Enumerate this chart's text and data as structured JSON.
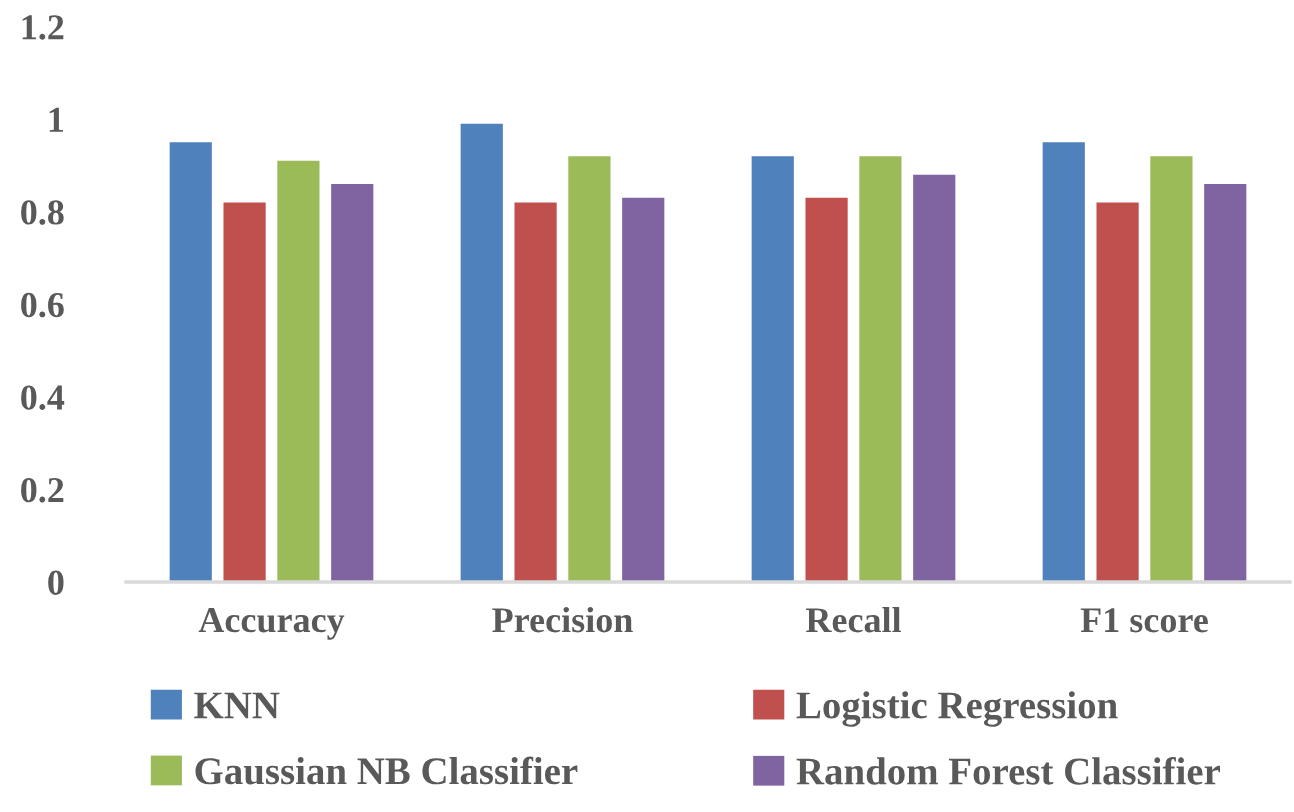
{
  "chart_data": {
    "type": "bar",
    "categories": [
      "Accuracy",
      "Precision",
      "Recall",
      "F1 score"
    ],
    "series": [
      {
        "name": "KNN",
        "color": "#4f81bd",
        "values": [
          0.95,
          0.99,
          0.92,
          0.95
        ]
      },
      {
        "name": "Logistic Regression",
        "color": "#c0504d",
        "values": [
          0.82,
          0.82,
          0.83,
          0.82
        ]
      },
      {
        "name": "Gaussian NB Classifier",
        "color": "#9bbb59",
        "values": [
          0.91,
          0.92,
          0.92,
          0.92
        ]
      },
      {
        "name": "Random Forest Classifier",
        "color": "#8064a2",
        "values": [
          0.86,
          0.83,
          0.88,
          0.86
        ]
      }
    ],
    "ylim": [
      0,
      1.2
    ],
    "yticks": [
      0,
      0.2,
      0.4,
      0.6,
      0.8,
      1,
      1.2
    ],
    "grid": false,
    "legend": "bottom"
  }
}
